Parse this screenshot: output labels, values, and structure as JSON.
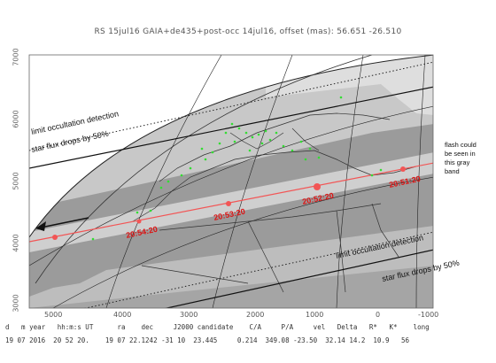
{
  "title": "RS 15jul16 GAIA+de435+post-occ 14jul16, offset (mas): 56.651 -26.510",
  "y_axis": [
    "7000",
    "6000",
    "5000",
    "4000",
    "3000"
  ],
  "x_axis": [
    "5000",
    "4000",
    "3000",
    "2000",
    "1000",
    "0",
    "-1000"
  ],
  "labels": {
    "limit_top": "limit occultation detection",
    "flux_top": "star flux drops by 50%",
    "limit_bottom": "limit occultation detection",
    "flux_bottom": "star flux drops by 50%",
    "flash_line1": "flash could",
    "flash_line2": "be seen in",
    "flash_line3": "this gray",
    "flash_line4": "band"
  },
  "times": [
    "20:54:20",
    "20:53:20",
    "20:52:20",
    "20:51:20"
  ],
  "footer": {
    "header": "d   m year   hh:m:s UT      ra    dec     J2000 candidate    C/A     P/A     vel   Delta   R*   K*    long",
    "values": "19 07 2016  20 52 20.    19 07 22.1242 -31 10  23.445     0.214  349.08 -23.50  32.14 14.2  10.9   56"
  },
  "colors": {
    "track": "#f25555",
    "time_label": "#dd1111",
    "cities": "#33dd33",
    "band_dark": "#9a9a9a",
    "band_light": "#c9c9c9"
  }
}
